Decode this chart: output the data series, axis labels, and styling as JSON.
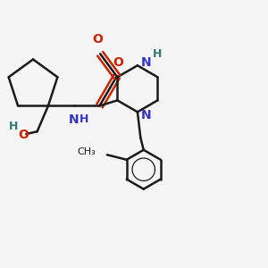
{
  "bg_color": "#f5f5f5",
  "bond_color": "#1a1a1a",
  "N_color": "#3333cc",
  "O_color": "#cc2200",
  "H_color": "#337777",
  "line_width": 1.8,
  "figsize": [
    3.0,
    3.0
  ],
  "dpi": 100,
  "xlim": [
    -1.0,
    3.2
  ],
  "ylim": [
    -2.8,
    1.5
  ]
}
